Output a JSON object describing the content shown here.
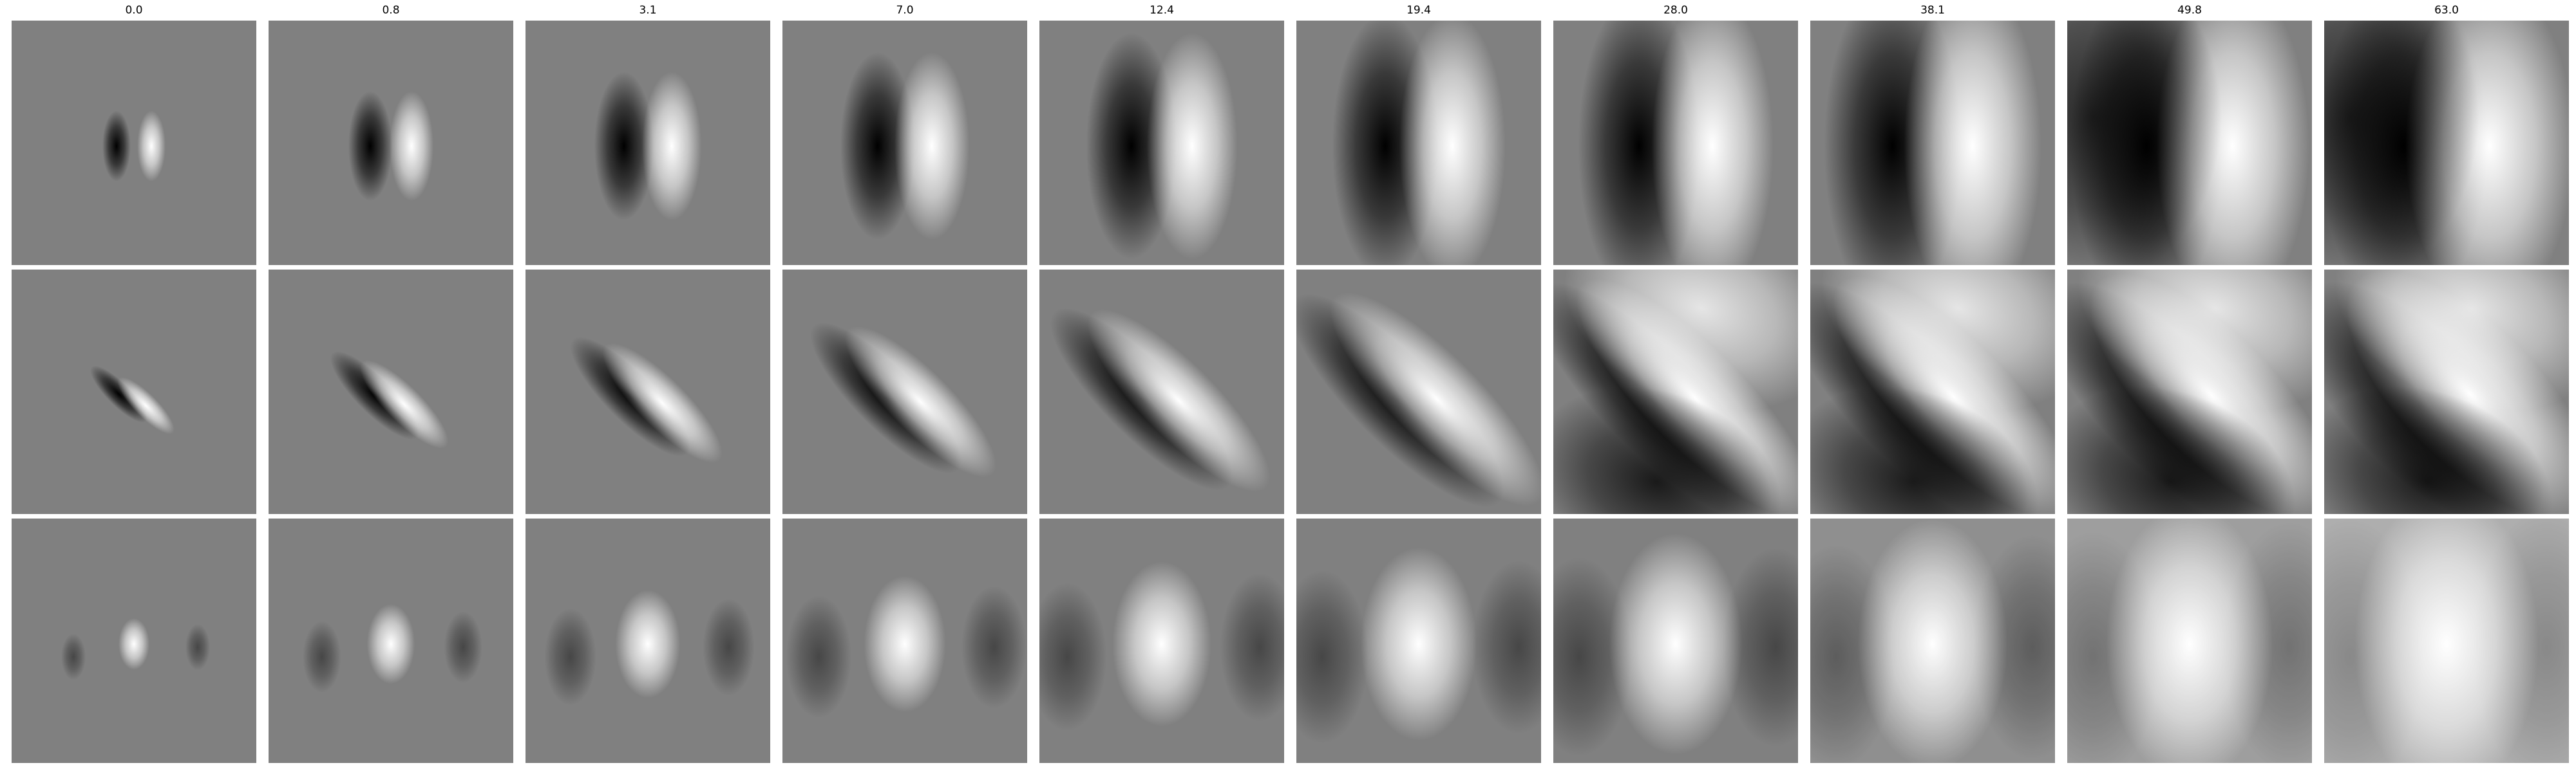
{
  "columns": [
    "0.0",
    "0.8",
    "3.1",
    "7.0",
    "12.4",
    "19.4",
    "28.0",
    "38.1",
    "49.8",
    "63.0"
  ],
  "rows": [
    {
      "kind": "x-derivative"
    },
    {
      "kind": "diagonal-derivative"
    },
    {
      "kind": "center-blob"
    }
  ],
  "colors": {
    "background": "#808080",
    "dark": "#000000",
    "light": "#ffffff"
  }
}
